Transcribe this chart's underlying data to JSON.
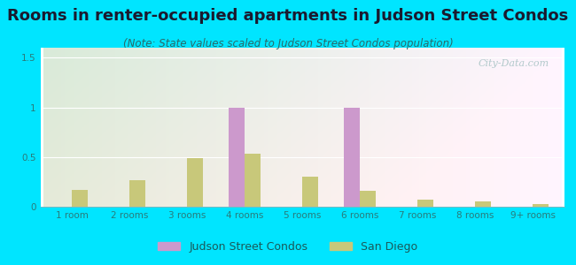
{
  "title": "Rooms in renter-occupied apartments in Judson Street Condos",
  "subtitle": "(Note: State values scaled to Judson Street Condos population)",
  "categories": [
    "1 room",
    "2 rooms",
    "3 rooms",
    "4 rooms",
    "5 rooms",
    "6 rooms",
    "7 rooms",
    "8 rooms",
    "9+ rooms"
  ],
  "judson_values": [
    0,
    0,
    0,
    1.0,
    0,
    1.0,
    0,
    0,
    0
  ],
  "sandiego_values": [
    0.17,
    0.27,
    0.49,
    0.53,
    0.3,
    0.16,
    0.07,
    0.05,
    0.03
  ],
  "judson_color": "#cc99cc",
  "sandiego_color": "#c8c87a",
  "bg_color": "#00e5ff",
  "ylim": [
    0,
    1.6
  ],
  "yticks": [
    0,
    0.5,
    1,
    1.5
  ],
  "bar_width": 0.28,
  "title_fontsize": 13,
  "subtitle_fontsize": 8.5,
  "legend_fontsize": 9,
  "tick_fontsize": 7.5,
  "watermark": "City-Data.com"
}
